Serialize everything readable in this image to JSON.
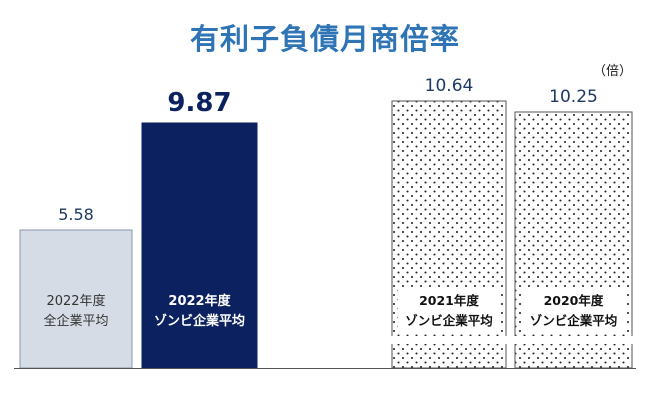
{
  "chart_data": {
    "type": "bar",
    "title": "有利子負債月商倍率",
    "unit": "（倍）",
    "categories": [
      [
        "2022年度",
        "全企業平均"
      ],
      [
        "2022年度",
        "ゾンビ企業平均"
      ],
      [
        "2021年度",
        "ゾンビ企業平均"
      ],
      [
        "2020年度",
        "ゾンビ企業平均"
      ]
    ],
    "values": [
      5.58,
      9.87,
      10.64,
      10.25
    ],
    "value_labels": [
      "5.58",
      "9.87",
      "10.64",
      "10.25"
    ],
    "ylim": [
      0,
      12
    ],
    "grid": false,
    "legend": "none",
    "axis_break": "between bar 2 and bar 3",
    "colors": {
      "all_companies_2022": "#d6dce5",
      "zombie_2022": "#0b2160",
      "zombie_past": "#ffffff",
      "dot_pattern": "#222222",
      "title": "#2f75b5",
      "value_label": "#1f3864"
    }
  }
}
